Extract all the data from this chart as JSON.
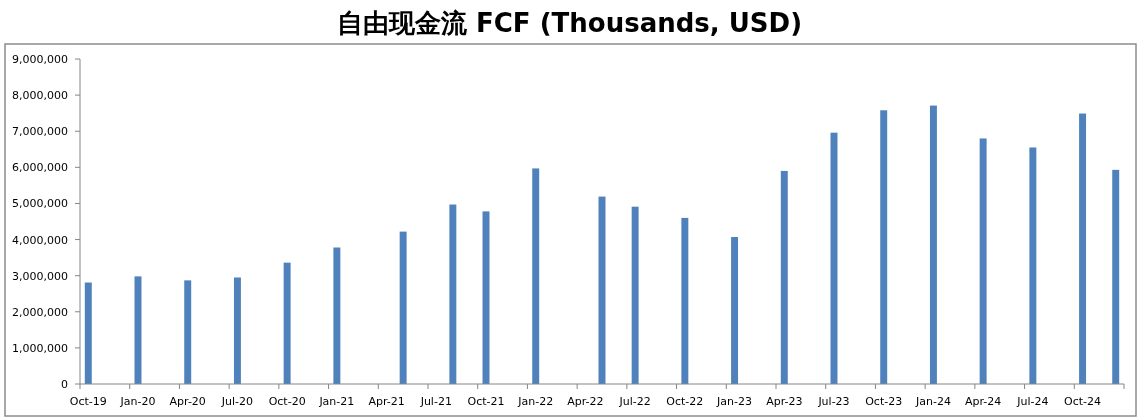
{
  "chart_data": {
    "type": "bar",
    "title": "自由现金流 FCF (Thousands, USD)",
    "x": [
      "2019-10",
      "2020-01",
      "2020-04",
      "2020-07",
      "2020-10",
      "2021-01",
      "2021-05",
      "2021-08",
      "2021-10",
      "2022-01",
      "2022-05",
      "2022-07",
      "2022-10",
      "2023-01",
      "2023-04",
      "2023-07",
      "2023-10",
      "2024-01",
      "2024-04",
      "2024-07",
      "2024-10",
      "2024-12"
    ],
    "values": [
      2810000,
      2980000,
      2870000,
      2950000,
      3360000,
      3780000,
      4220000,
      4970000,
      4780000,
      5970000,
      5190000,
      4910000,
      4600000,
      4070000,
      5900000,
      6960000,
      7580000,
      7710000,
      6800000,
      6550000,
      7490000,
      5930000
    ],
    "color": "#4f81bd",
    "ylim": [
      0,
      9000000
    ],
    "yticks": [
      {
        "value": 0,
        "label": "0"
      },
      {
        "value": 1000000,
        "label": "1,000,000"
      },
      {
        "value": 2000000,
        "label": "2,000,000"
      },
      {
        "value": 3000000,
        "label": "3,000,000"
      },
      {
        "value": 4000000,
        "label": "4,000,000"
      },
      {
        "value": 5000000,
        "label": "5,000,000"
      },
      {
        "value": 6000000,
        "label": "6,000,000"
      },
      {
        "value": 7000000,
        "label": "7,000,000"
      },
      {
        "value": 8000000,
        "label": "8,000,000"
      },
      {
        "value": 9000000,
        "label": "9,000,000"
      }
    ],
    "xlim": [
      "2019-10",
      "2025-01"
    ],
    "xticks": [
      {
        "value": "2019-10",
        "label": "Oct-19"
      },
      {
        "value": "2020-01",
        "label": "Jan-20"
      },
      {
        "value": "2020-04",
        "label": "Apr-20"
      },
      {
        "value": "2020-07",
        "label": "Jul-20"
      },
      {
        "value": "2020-10",
        "label": "Oct-20"
      },
      {
        "value": "2021-01",
        "label": "Jan-21"
      },
      {
        "value": "2021-04",
        "label": "Apr-21"
      },
      {
        "value": "2021-07",
        "label": "Jul-21"
      },
      {
        "value": "2021-10",
        "label": "Oct-21"
      },
      {
        "value": "2022-01",
        "label": "Jan-22"
      },
      {
        "value": "2022-04",
        "label": "Apr-22"
      },
      {
        "value": "2022-07",
        "label": "Jul-22"
      },
      {
        "value": "2022-10",
        "label": "Oct-22"
      },
      {
        "value": "2023-01",
        "label": "Jan-23"
      },
      {
        "value": "2023-04",
        "label": "Apr-23"
      },
      {
        "value": "2023-07",
        "label": "Jul-23"
      },
      {
        "value": "2023-10",
        "label": "Oct-23"
      },
      {
        "value": "2024-01",
        "label": "Jan-24"
      },
      {
        "value": "2024-04",
        "label": "Apr-24"
      },
      {
        "value": "2024-07",
        "label": "Jul-24"
      },
      {
        "value": "2024-10",
        "label": "Oct-24"
      },
      {
        "value": "2025-01",
        "label": null
      }
    ],
    "grid": false
  }
}
